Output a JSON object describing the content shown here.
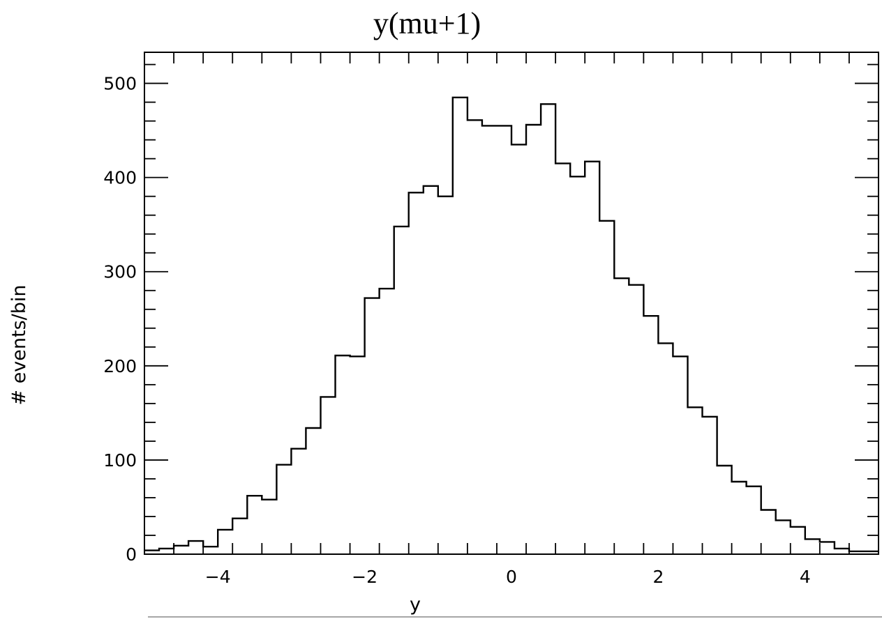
{
  "chart_data": {
    "type": "bar",
    "style": "step-histogram",
    "title": "y(mu+1)",
    "xlabel": "y",
    "ylabel": "# events/bin",
    "xlim": [
      -5,
      5
    ],
    "ylim": [
      0,
      533
    ],
    "xticks": [
      -4,
      -2,
      0,
      2,
      4
    ],
    "xtick_labels": [
      "−4",
      "−2",
      "0",
      "2",
      "4"
    ],
    "yticks": [
      0,
      100,
      200,
      300,
      400,
      500
    ],
    "ytick_labels": [
      "0",
      "100",
      "200",
      "300",
      "400",
      "500"
    ],
    "bin_edges": [
      -5.0,
      -4.8,
      -4.6,
      -4.4,
      -4.2,
      -4.0,
      -3.8,
      -3.6,
      -3.4,
      -3.2,
      -3.0,
      -2.8,
      -2.6,
      -2.4,
      -2.2,
      -2.0,
      -1.8,
      -1.6,
      -1.4,
      -1.2,
      -1.0,
      -0.8,
      -0.6,
      -0.4,
      -0.2,
      0.0,
      0.2,
      0.4,
      0.6,
      0.8,
      1.0,
      1.2,
      1.4,
      1.6,
      1.8,
      2.0,
      2.2,
      2.4,
      2.6,
      2.8,
      3.0,
      3.2,
      3.4,
      3.6,
      3.8,
      4.0,
      4.2,
      4.4,
      4.6,
      4.8,
      5.0
    ],
    "values": [
      4,
      6,
      9,
      14,
      8,
      26,
      38,
      62,
      58,
      95,
      112,
      134,
      167,
      211,
      210,
      272,
      282,
      348,
      384,
      391,
      380,
      485,
      461,
      455,
      455,
      435,
      456,
      478,
      415,
      401,
      417,
      354,
      293,
      286,
      253,
      224,
      210,
      156,
      146,
      94,
      77,
      72,
      47,
      36,
      29,
      16,
      13,
      6,
      3,
      3
    ],
    "line_color": "#000000",
    "grid": false,
    "legend": "none"
  }
}
